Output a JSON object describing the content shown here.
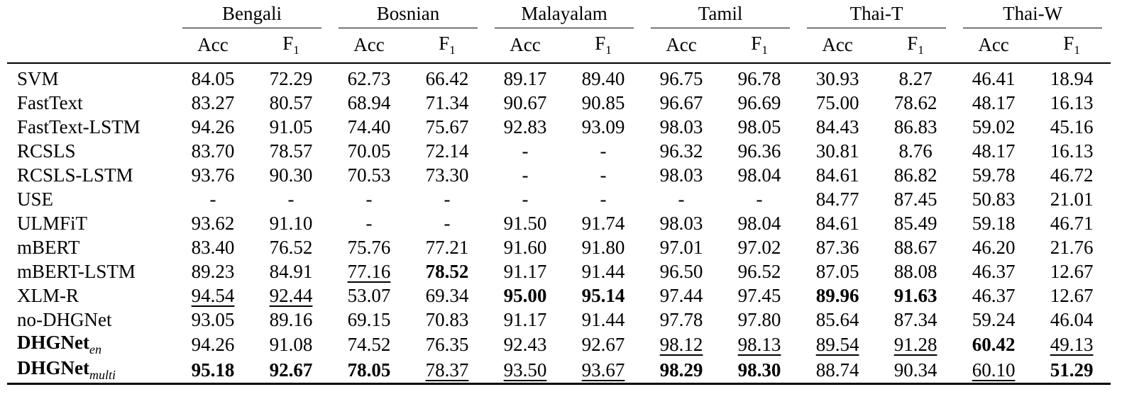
{
  "languages": [
    "Bengali",
    "Bosnian",
    "Malayalam",
    "Tamil",
    "Thai-T",
    "Thai-W"
  ],
  "metrics": {
    "acc": "Acc",
    "f1_base": "F",
    "f1_sub": "1"
  },
  "rows": [
    {
      "name": "SVM",
      "sub": "",
      "bold_name": false,
      "values": [
        "84.05",
        "72.29",
        "62.73",
        "66.42",
        "89.17",
        "89.40",
        "96.75",
        "96.78",
        "30.93",
        "8.27",
        "46.41",
        "18.94"
      ],
      "bold": [],
      "underline": []
    },
    {
      "name": "FastText",
      "sub": "",
      "bold_name": false,
      "values": [
        "83.27",
        "80.57",
        "68.94",
        "71.34",
        "90.67",
        "90.85",
        "96.67",
        "96.69",
        "75.00",
        "78.62",
        "48.17",
        "16.13"
      ],
      "bold": [],
      "underline": []
    },
    {
      "name": "FastText-LSTM",
      "sub": "",
      "bold_name": false,
      "values": [
        "94.26",
        "91.05",
        "74.40",
        "75.67",
        "92.83",
        "93.09",
        "98.03",
        "98.05",
        "84.43",
        "86.83",
        "59.02",
        "45.16"
      ],
      "bold": [],
      "underline": []
    },
    {
      "name": "RCSLS",
      "sub": "",
      "bold_name": false,
      "values": [
        "83.70",
        "78.57",
        "70.05",
        "72.14",
        "-",
        "-",
        "96.32",
        "96.36",
        "30.81",
        "8.76",
        "48.17",
        "16.13"
      ],
      "bold": [],
      "underline": []
    },
    {
      "name": "RCSLS-LSTM",
      "sub": "",
      "bold_name": false,
      "values": [
        "93.76",
        "90.30",
        "70.53",
        "73.30",
        "-",
        "-",
        "98.03",
        "98.04",
        "84.61",
        "86.82",
        "59.78",
        "46.72"
      ],
      "bold": [],
      "underline": []
    },
    {
      "name": "USE",
      "sub": "",
      "bold_name": false,
      "values": [
        "-",
        "-",
        "-",
        "-",
        "-",
        "-",
        "-",
        "-",
        "84.77",
        "87.45",
        "50.83",
        "21.01"
      ],
      "bold": [],
      "underline": []
    },
    {
      "name": "ULMFiT",
      "sub": "",
      "bold_name": false,
      "values": [
        "93.62",
        "91.10",
        "-",
        "-",
        "91.50",
        "91.74",
        "98.03",
        "98.04",
        "84.61",
        "85.49",
        "59.18",
        "46.71"
      ],
      "bold": [],
      "underline": []
    },
    {
      "name": "mBERT",
      "sub": "",
      "bold_name": false,
      "values": [
        "83.40",
        "76.52",
        "75.76",
        "77.21",
        "91.60",
        "91.80",
        "97.01",
        "97.02",
        "87.36",
        "88.67",
        "46.20",
        "21.76"
      ],
      "bold": [],
      "underline": []
    },
    {
      "name": "mBERT-LSTM",
      "sub": "",
      "bold_name": false,
      "values": [
        "89.23",
        "84.91",
        "77.16",
        "78.52",
        "91.17",
        "91.44",
        "96.50",
        "96.52",
        "87.05",
        "88.08",
        "46.37",
        "12.67"
      ],
      "bold": [
        3
      ],
      "underline": [
        2
      ]
    },
    {
      "name": "XLM-R",
      "sub": "",
      "bold_name": false,
      "values": [
        "94.54",
        "92.44",
        "53.07",
        "69.34",
        "95.00",
        "95.14",
        "97.44",
        "97.45",
        "89.96",
        "91.63",
        "46.37",
        "12.67"
      ],
      "bold": [
        4,
        5,
        8,
        9
      ],
      "underline": [
        0,
        1
      ]
    },
    {
      "name": "no-DHGNet",
      "sub": "",
      "bold_name": false,
      "values": [
        "93.05",
        "89.16",
        "69.15",
        "70.83",
        "91.17",
        "91.44",
        "97.78",
        "97.80",
        "85.64",
        "87.34",
        "59.24",
        "46.04"
      ],
      "bold": [],
      "underline": []
    },
    {
      "name": "DHGNet",
      "sub": "en",
      "bold_name": true,
      "values": [
        "94.26",
        "91.08",
        "74.52",
        "76.35",
        "92.43",
        "92.67",
        "98.12",
        "98.13",
        "89.54",
        "91.28",
        "60.42",
        "49.13"
      ],
      "bold": [
        10
      ],
      "underline": [
        6,
        7,
        8,
        9,
        11
      ]
    },
    {
      "name": "DHGNet",
      "sub": "multi",
      "bold_name": true,
      "values": [
        "95.18",
        "92.67",
        "78.05",
        "78.37",
        "93.50",
        "93.67",
        "98.29",
        "98.30",
        "88.74",
        "90.34",
        "60.10",
        "51.29"
      ],
      "bold": [
        0,
        1,
        2,
        6,
        7,
        11
      ],
      "underline": [
        3,
        4,
        5,
        10
      ]
    }
  ]
}
